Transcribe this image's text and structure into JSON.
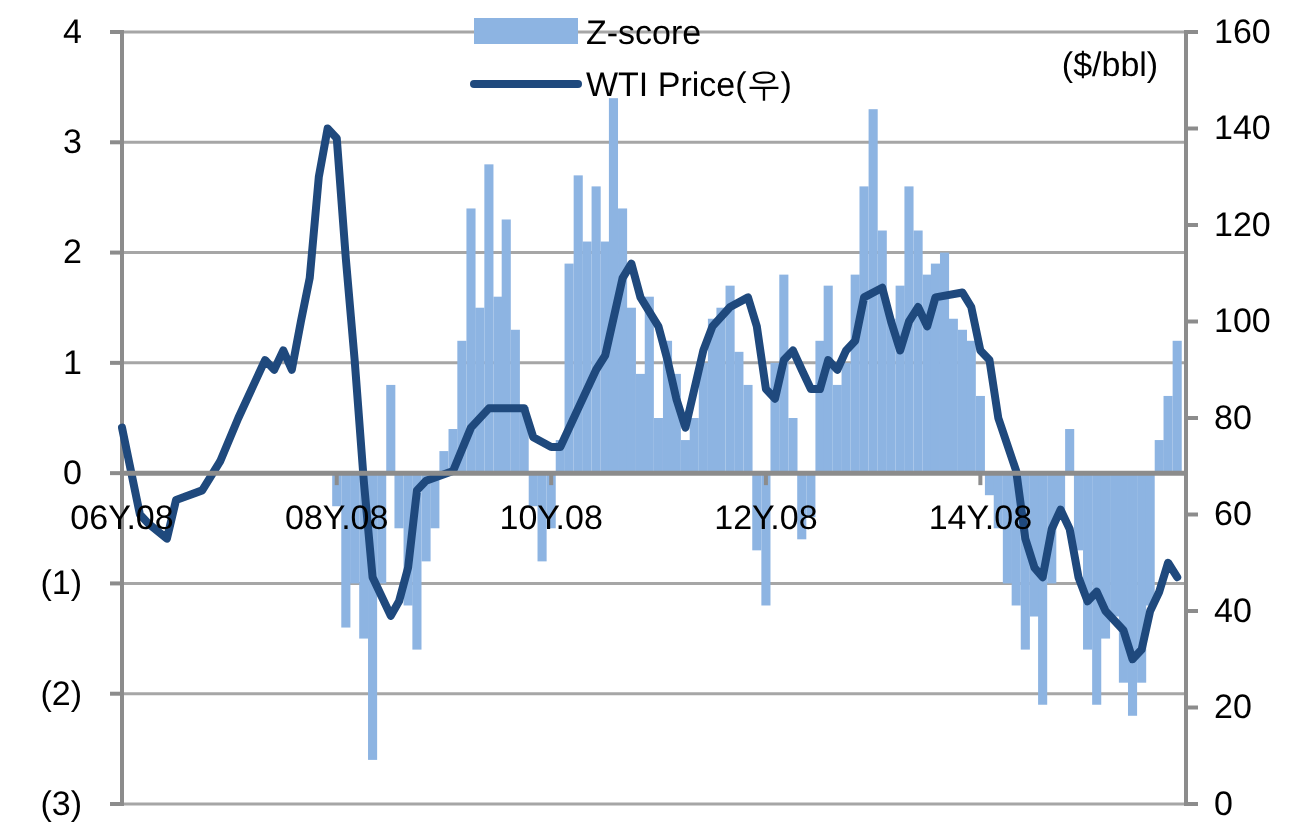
{
  "chart_data": {
    "type": "bar",
    "y2label": "($/bbl)",
    "legend": "top",
    "grid": "y",
    "xlim": [
      "2006-08",
      "2016-07"
    ],
    "xticks": [
      {
        "value": "2006-08",
        "label": "06Y.08"
      },
      {
        "value": "2008-08",
        "label": "08Y.08"
      },
      {
        "value": "2010-08",
        "label": "10Y.08"
      },
      {
        "value": "2012-08",
        "label": "12Y.08"
      },
      {
        "value": "2014-08",
        "label": "14Y.08"
      }
    ],
    "ylim": [
      -3,
      4
    ],
    "yticks": [
      {
        "value": -3,
        "label": "(3)"
      },
      {
        "value": -2,
        "label": "(2)"
      },
      {
        "value": -1,
        "label": "(1)"
      },
      0,
      1,
      2,
      3,
      4
    ],
    "y2lim": [
      0,
      160
    ],
    "y2ticks": [
      0,
      20,
      40,
      60,
      80,
      100,
      120,
      140,
      160
    ],
    "series": [
      {
        "name": "Z-score",
        "color": "#8db4e2",
        "x": [
          "2008-08",
          "2008-09",
          "2008-10",
          "2008-11",
          "2008-12",
          "2009-01",
          "2009-02",
          "2009-03",
          "2009-04",
          "2009-05",
          "2009-06",
          "2009-07",
          "2009-08",
          "2009-09",
          "2009-10",
          "2009-11",
          "2009-12",
          "2010-01",
          "2010-02",
          "2010-03",
          "2010-04",
          "2010-05",
          "2010-06",
          "2010-07",
          "2010-08",
          "2010-09",
          "2010-10",
          "2010-11",
          "2010-12",
          "2011-01",
          "2011-02",
          "2011-03",
          "2011-04",
          "2011-05",
          "2011-06",
          "2011-07",
          "2011-08",
          "2011-09",
          "2011-10",
          "2011-11",
          "2011-12",
          "2012-01",
          "2012-02",
          "2012-03",
          "2012-04",
          "2012-05",
          "2012-06",
          "2012-07",
          "2012-08",
          "2012-09",
          "2012-10",
          "2012-11",
          "2012-12",
          "2013-01",
          "2013-02",
          "2013-03",
          "2013-04",
          "2013-05",
          "2013-06",
          "2013-07",
          "2013-08",
          "2013-09",
          "2013-10",
          "2013-11",
          "2013-12",
          "2014-01",
          "2014-02",
          "2014-03",
          "2014-04",
          "2014-05",
          "2014-06",
          "2014-07",
          "2014-08",
          "2014-09",
          "2014-10",
          "2014-11",
          "2014-12",
          "2015-01",
          "2015-02",
          "2015-03",
          "2015-04",
          "2015-05",
          "2015-06",
          "2015-07",
          "2015-08",
          "2015-09",
          "2015-10",
          "2015-11",
          "2015-12",
          "2016-01",
          "2016-02",
          "2016-03",
          "2016-04",
          "2016-05",
          "2016-06"
        ],
        "values": [
          -0.3,
          -1.4,
          -1.0,
          -1.5,
          -2.6,
          -1.0,
          0.8,
          -0.5,
          -1.2,
          -1.6,
          -0.8,
          -0.5,
          0.2,
          0.4,
          1.2,
          2.4,
          1.5,
          2.8,
          1.6,
          2.3,
          1.3,
          0.6,
          -0.3,
          -0.8,
          -0.5,
          0.3,
          1.9,
          2.7,
          2.1,
          2.6,
          2.1,
          3.4,
          2.4,
          1.5,
          0.9,
          1.6,
          0.5,
          1.2,
          0.9,
          0.3,
          0.5,
          1.0,
          1.4,
          1.5,
          1.7,
          1.1,
          0.8,
          -0.7,
          -1.2,
          1.0,
          1.8,
          0.5,
          -0.6,
          -0.4,
          1.2,
          1.7,
          0.8,
          1.0,
          1.8,
          2.6,
          3.3,
          2.2,
          1.4,
          1.7,
          2.6,
          2.2,
          1.8,
          1.9,
          2.0,
          1.4,
          1.3,
          1.2,
          0.7,
          -0.2,
          -0.5,
          -1.0,
          -1.2,
          -1.6,
          -1.3,
          -2.1,
          -1.0,
          -0.4,
          0.4,
          -0.7,
          -1.6,
          -2.1,
          -1.5,
          -1.3,
          -1.9,
          -2.2,
          -1.9,
          -1.2,
          0.3,
          0.7,
          1.2
        ]
      },
      {
        "name": "WTI Price(우)",
        "type": "line",
        "axis": "y2",
        "color": "#1f497d",
        "x": [
          "2006-08",
          "2006-10",
          "2006-11",
          "2007-01",
          "2007-02",
          "2007-05",
          "2007-07",
          "2007-09",
          "2007-12",
          "2008-01",
          "2008-02",
          "2008-03",
          "2008-04",
          "2008-05",
          "2008-06",
          "2008-07",
          "2008-08",
          "2008-09",
          "2008-10",
          "2008-11",
          "2008-12",
          "2009-02",
          "2009-03",
          "2009-04",
          "2009-05",
          "2009-06",
          "2009-09",
          "2009-11",
          "2010-01",
          "2010-03",
          "2010-05",
          "2010-06",
          "2010-08",
          "2010-09",
          "2010-11",
          "2011-01",
          "2011-02",
          "2011-04",
          "2011-05",
          "2011-06",
          "2011-08",
          "2011-09",
          "2011-10",
          "2011-11",
          "2012-01",
          "2012-02",
          "2012-04",
          "2012-06",
          "2012-07",
          "2012-08",
          "2012-09",
          "2012-10",
          "2012-11",
          "2012-12",
          "2013-01",
          "2013-02",
          "2013-03",
          "2013-04",
          "2013-05",
          "2013-06",
          "2013-07",
          "2013-09",
          "2013-10",
          "2013-11",
          "2013-12",
          "2014-01",
          "2014-02",
          "2014-03",
          "2014-06",
          "2014-07",
          "2014-08",
          "2014-09",
          "2014-10",
          "2014-12",
          "2015-01",
          "2015-02",
          "2015-03",
          "2015-04",
          "2015-05",
          "2015-06",
          "2015-07",
          "2015-08",
          "2015-09",
          "2015-10",
          "2015-12",
          "2016-01",
          "2016-02",
          "2016-03",
          "2016-04",
          "2016-05",
          "2016-06"
        ],
        "values": [
          78,
          60,
          58,
          55,
          63,
          65,
          71,
          80,
          92,
          90,
          94,
          90,
          100,
          109,
          130,
          140,
          138,
          113,
          92,
          67,
          47,
          39,
          42,
          49,
          65,
          67,
          69,
          78,
          82,
          82,
          82,
          76,
          74,
          74,
          82,
          90,
          93,
          109,
          112,
          105,
          99,
          92,
          84,
          78,
          94,
          99,
          103,
          105,
          99,
          86,
          84,
          92,
          94,
          90,
          86,
          86,
          92,
          90,
          94,
          96,
          105,
          107,
          100,
          94,
          100,
          103,
          99,
          105,
          106,
          103,
          94,
          92,
          80,
          69,
          55,
          49,
          47,
          57,
          61,
          57,
          47,
          42,
          44,
          40,
          36,
          30,
          32,
          40,
          44,
          50,
          47
        ]
      }
    ]
  }
}
